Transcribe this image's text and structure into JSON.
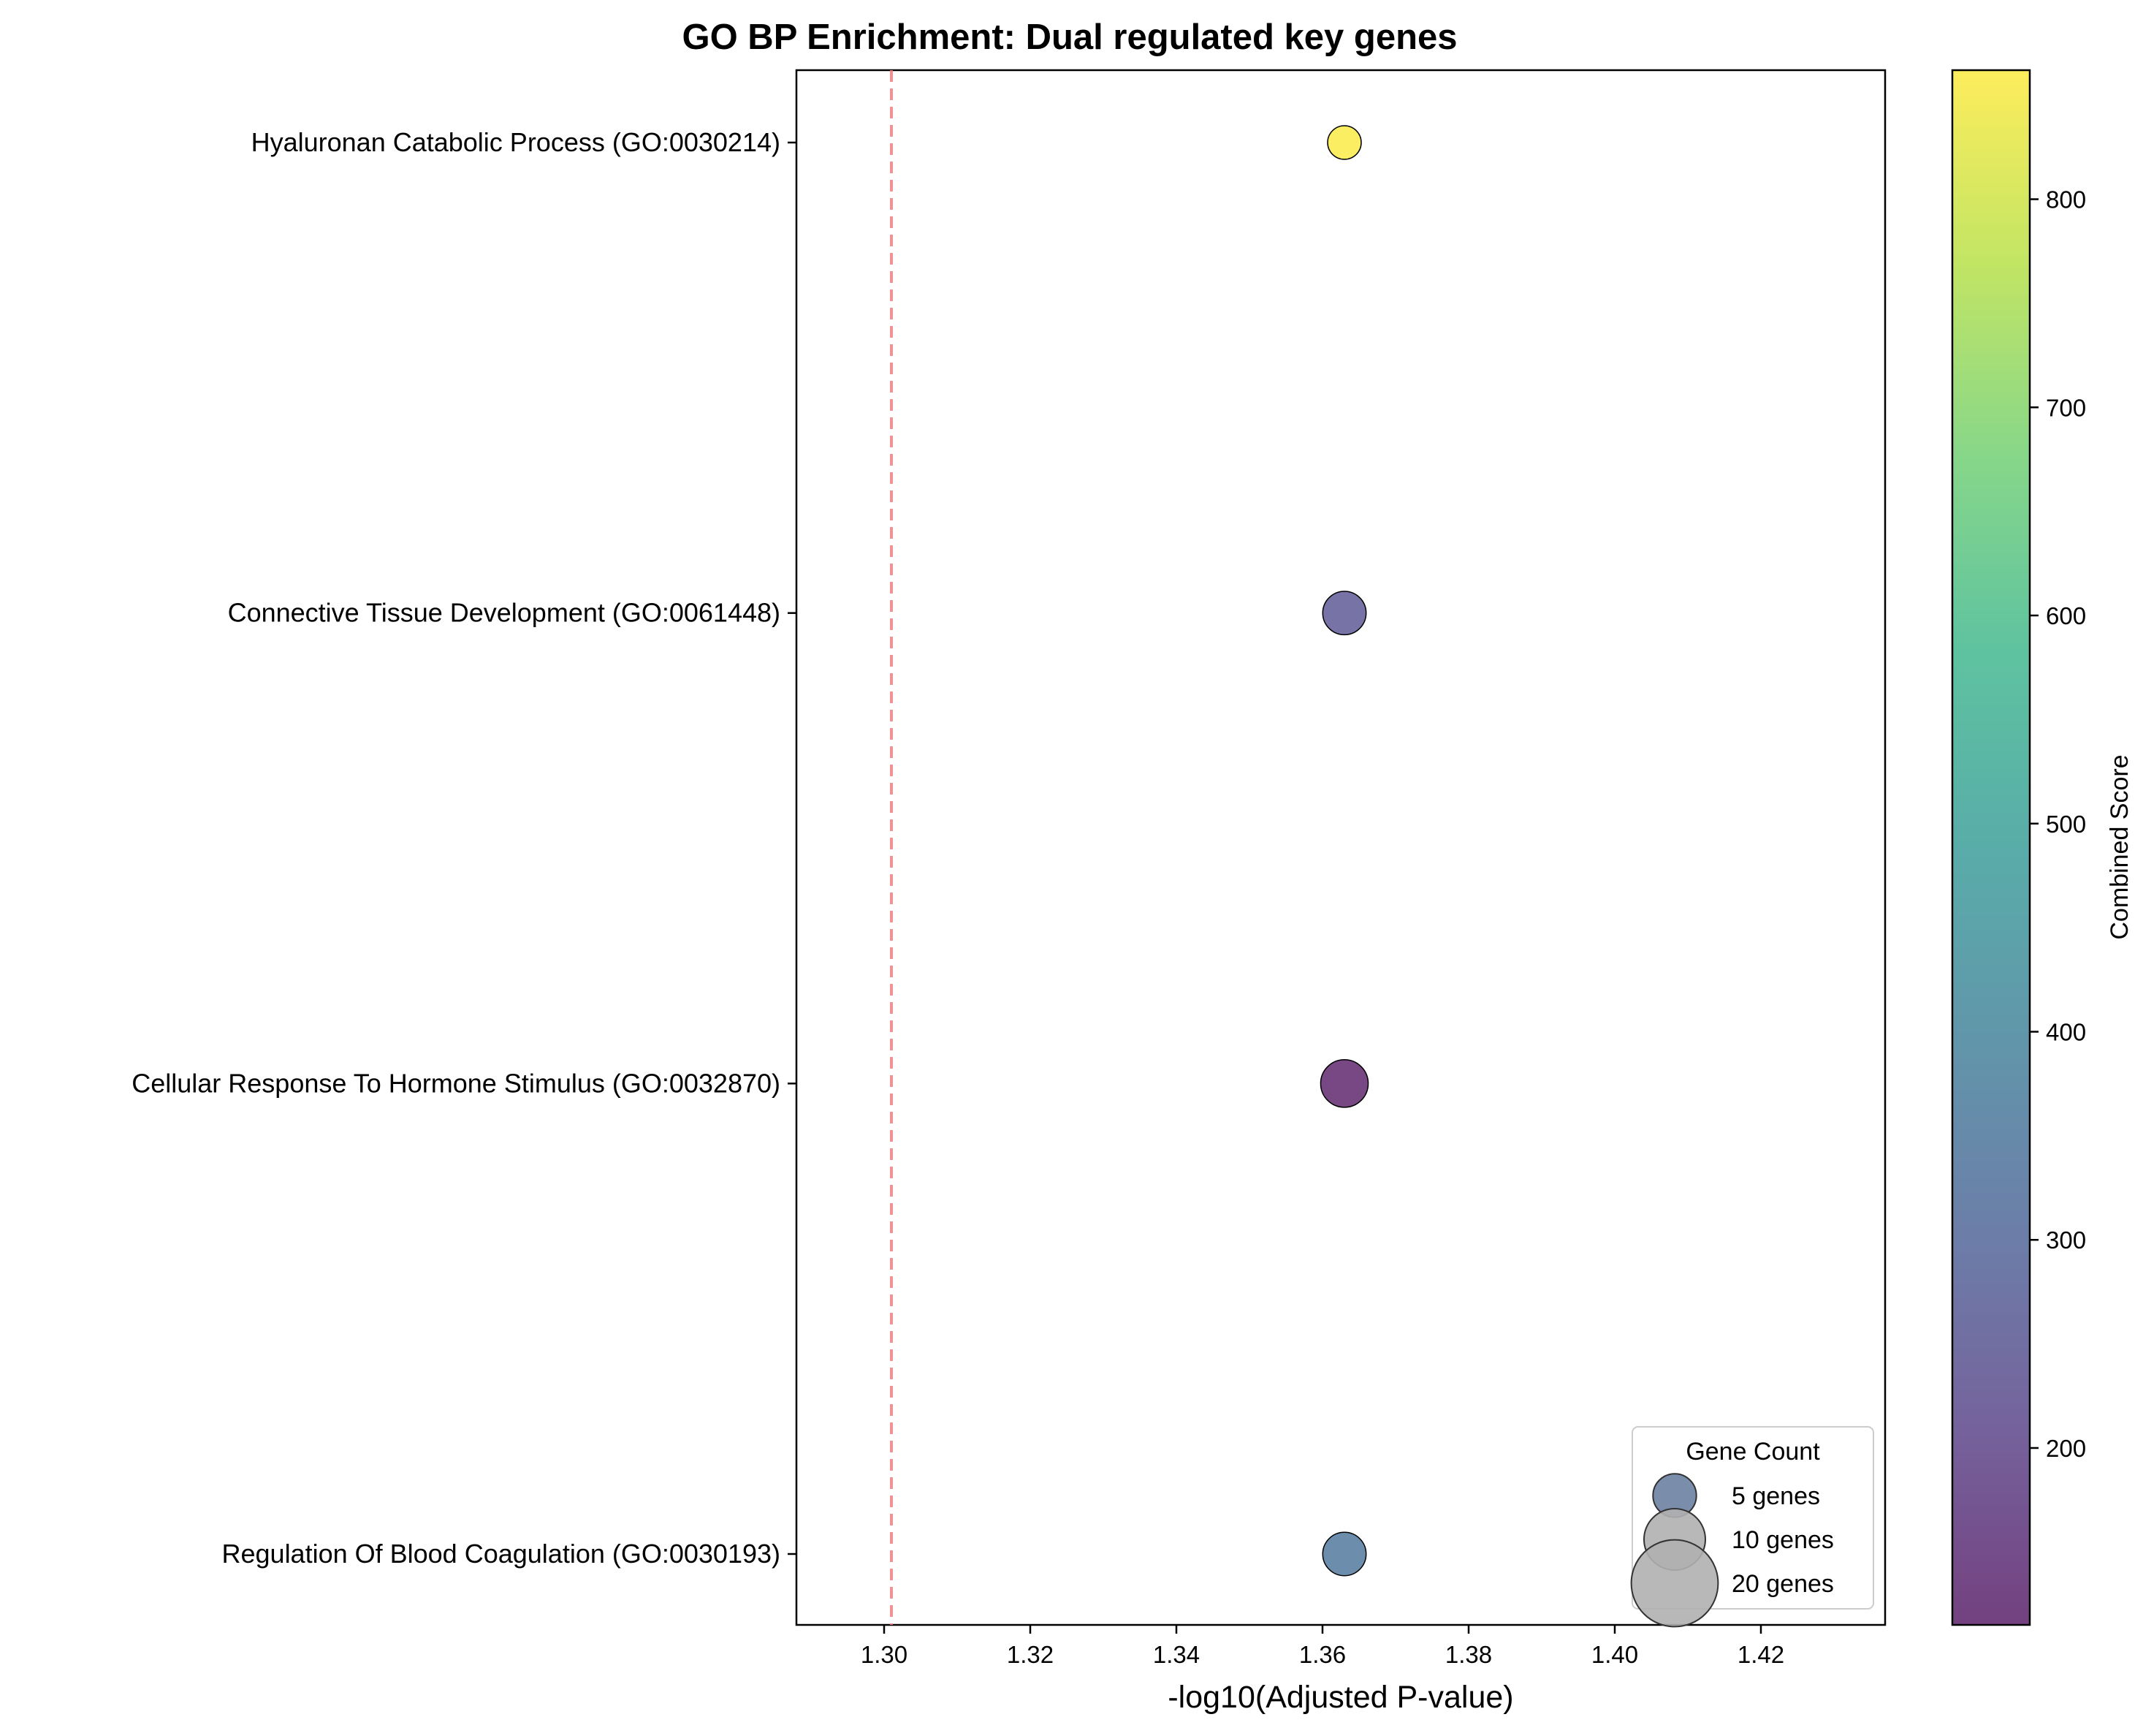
{
  "chart_data": {
    "type": "scatter",
    "title": "GO BP Enrichment: Dual regulated key genes",
    "xlabel": "-log10(Adjusted P-value)",
    "ylabel": "",
    "xlim": [
      1.288,
      1.437
    ],
    "x_ticks": [
      "1.30",
      "1.32",
      "1.34",
      "1.36",
      "1.38",
      "1.40",
      "1.42"
    ],
    "x_tick_values": [
      1.3,
      1.32,
      1.34,
      1.36,
      1.38,
      1.4,
      1.42
    ],
    "categories": [
      "Hyaluronan Catabolic Process (GO:0030214)",
      "Connective Tissue Development (GO:0061448)",
      "Cellular Response To Hormone Stimulus (GO:0032870)",
      "Regulation Of Blood Coagulation (GO:0030193)"
    ],
    "points": [
      {
        "category": "Hyaluronan Catabolic Process (GO:0030214)",
        "x": 1.363,
        "gene_count": 3,
        "combined_score": 860
      },
      {
        "category": "Connective Tissue Development (GO:0061448)",
        "x": 1.363,
        "gene_count": 5,
        "combined_score": 250
      },
      {
        "category": "Cellular Response To Hormone Stimulus (GO:0032870)",
        "x": 1.363,
        "gene_count": 6,
        "combined_score": 115
      },
      {
        "category": "Regulation Of Blood Coagulation (GO:0030193)",
        "x": 1.363,
        "gene_count": 5,
        "combined_score": 345
      }
    ],
    "threshold_line": {
      "x": 1.301,
      "color": "#f08080",
      "style": "dashed"
    },
    "colorbar": {
      "label": "Combined Score",
      "colormap": "viridis",
      "range": [
        115,
        862
      ],
      "ticks": [
        "200",
        "300",
        "400",
        "500",
        "600",
        "700",
        "800"
      ],
      "tick_values": [
        200,
        300,
        400,
        500,
        600,
        700,
        800
      ]
    },
    "legend": {
      "title": "Gene Count",
      "placement": "lower-right",
      "entries": [
        "5 genes",
        "10 genes",
        "20 genes"
      ],
      "entry_counts": [
        5,
        10,
        20
      ],
      "entry_colors": [
        "#6b82a3",
        "#b0b0b0",
        "#b0b0b0"
      ]
    },
    "grid": false
  }
}
